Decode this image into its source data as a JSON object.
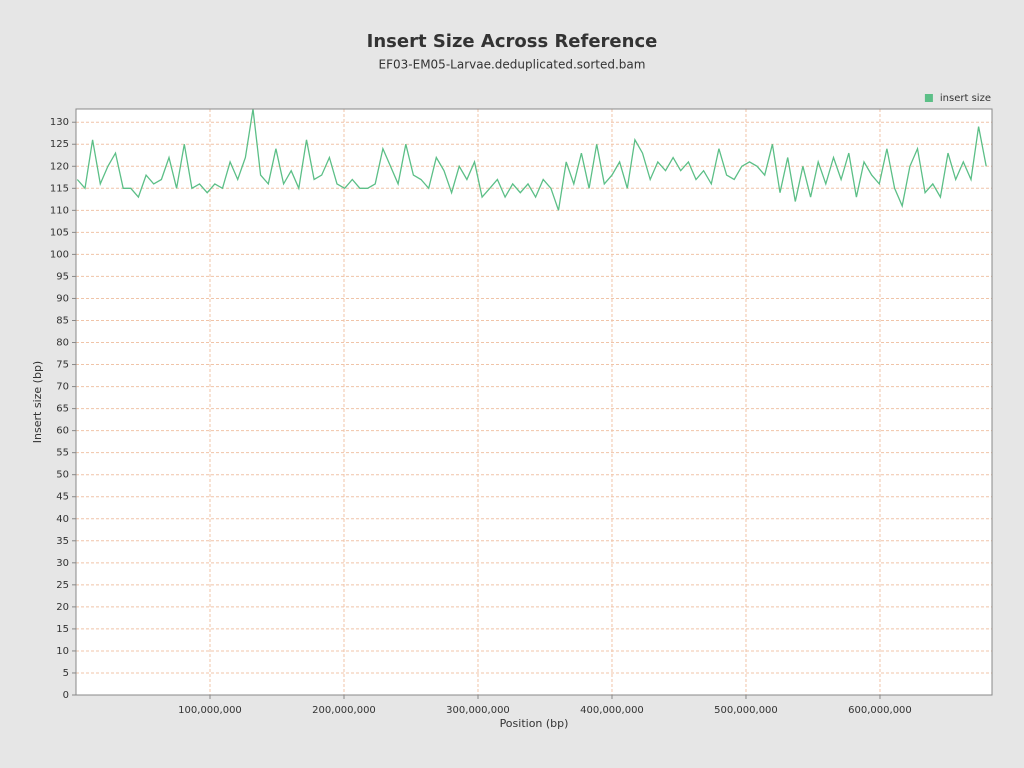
{
  "chart_data": {
    "type": "line",
    "title": "Insert Size Across Reference",
    "subtitle": "EF03-EM05-Larvae.deduplicated.sorted.bam",
    "x_label": "Position (bp)",
    "y_label": "Insert size (bp)",
    "xlim": [
      0,
      683600000
    ],
    "ylim": [
      0,
      133
    ],
    "xticks": [
      {
        "value": 100000000,
        "label": "100,000,000"
      },
      {
        "value": 200000000,
        "label": "200,000,000"
      },
      {
        "value": 300000000,
        "label": "300,000,000"
      },
      {
        "value": 400000000,
        "label": "400,000,000"
      },
      {
        "value": 500000000,
        "label": "500,000,000"
      },
      {
        "value": 600000000,
        "label": "600,000,000"
      }
    ],
    "yticks": [
      0,
      5,
      10,
      15,
      20,
      25,
      30,
      35,
      40,
      45,
      50,
      55,
      60,
      65,
      70,
      75,
      80,
      85,
      90,
      95,
      100,
      105,
      110,
      115,
      120,
      125,
      130
    ],
    "grid": true,
    "legend": "top-right",
    "x": [
      1000000,
      6700000,
      12400000,
      18100000,
      23800000,
      29500000,
      35200000,
      40900000,
      46600000,
      52300000,
      58000000,
      63700000,
      69400000,
      75100000,
      80800000,
      86500000,
      92200000,
      97900000,
      103600000,
      109300000,
      115000000,
      120700000,
      126400000,
      132100000,
      137800000,
      143500000,
      149200000,
      154900000,
      160600000,
      166300000,
      172000000,
      177700000,
      183400000,
      189100000,
      194800000,
      200500000,
      206200000,
      211900000,
      217600000,
      223300000,
      229000000,
      234700000,
      240400000,
      246100000,
      251800000,
      257500000,
      263200000,
      268900000,
      274600000,
      280300000,
      286000000,
      291700000,
      297400000,
      303100000,
      308800000,
      314500000,
      320200000,
      325900000,
      331600000,
      337300000,
      343000000,
      348700000,
      354400000,
      360100000,
      365800000,
      371500000,
      377200000,
      382900000,
      388600000,
      394300000,
      400000000,
      405700000,
      411400000,
      417100000,
      422800000,
      428500000,
      434200000,
      439900000,
      445600000,
      451300000,
      457000000,
      462700000,
      468400000,
      474100000,
      479800000,
      485500000,
      491200000,
      496900000,
      502600000,
      508300000,
      514000000,
      519700000,
      525400000,
      531100000,
      536800000,
      542500000,
      548200000,
      553900000,
      559600000,
      565300000,
      571000000,
      576700000,
      582400000,
      588100000,
      593800000,
      599500000,
      605200000,
      610900000,
      616600000,
      622300000,
      628000000,
      633700000,
      639400000,
      645100000,
      650800000,
      656500000,
      662200000,
      667900000,
      673600000,
      679300000
    ],
    "series": [
      {
        "name": "insert size",
        "color": "#5cbf87",
        "values": [
          117,
          115,
          126,
          116,
          120,
          123,
          115,
          115,
          113,
          118,
          116,
          117,
          122,
          115,
          125,
          115,
          116,
          114,
          116,
          115,
          121,
          117,
          122,
          133,
          118,
          116,
          124,
          116,
          119,
          115,
          126,
          117,
          118,
          122,
          116,
          115,
          117,
          115,
          115,
          116,
          124,
          120,
          116,
          125,
          118,
          117,
          115,
          122,
          119,
          114,
          120,
          117,
          121,
          113,
          115,
          117,
          113,
          116,
          114,
          116,
          113,
          117,
          115,
          110,
          121,
          116,
          123,
          115,
          125,
          116,
          118,
          121,
          115,
          126,
          123,
          117,
          121,
          119,
          122,
          119,
          121,
          117,
          119,
          116,
          124,
          118,
          117,
          120,
          121,
          120,
          118,
          125,
          114,
          122,
          112,
          120,
          113,
          121,
          116,
          122,
          117,
          123,
          113,
          121,
          118,
          116,
          124,
          115,
          111,
          120,
          124,
          114,
          116,
          113,
          123,
          117,
          121,
          117,
          129,
          120
        ]
      }
    ]
  }
}
